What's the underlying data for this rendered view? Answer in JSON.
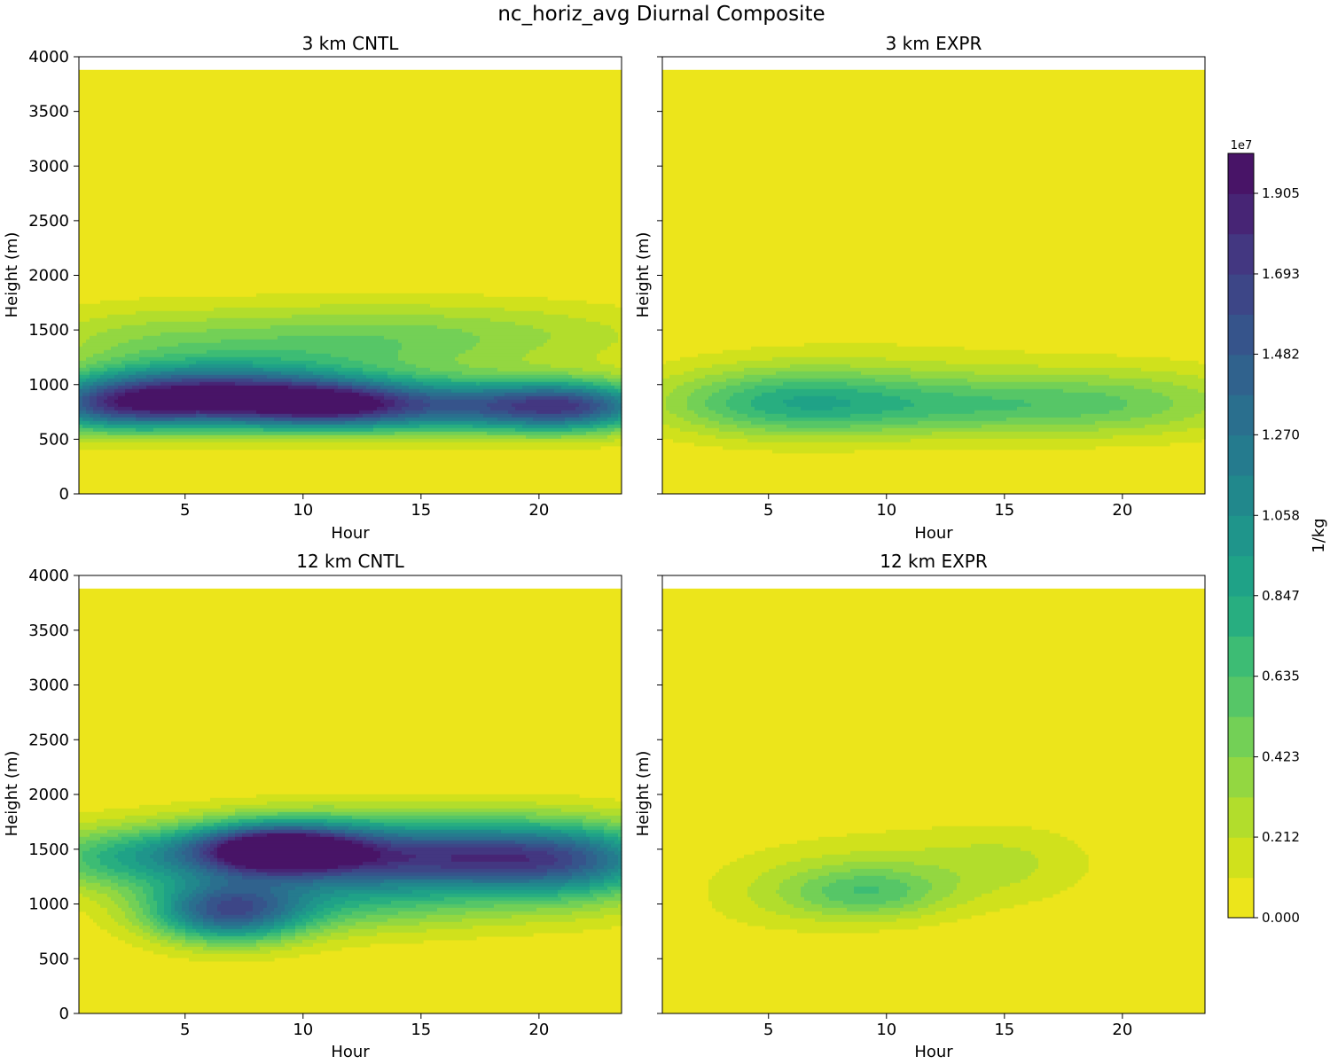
{
  "figure": {
    "title": "nc_horiz_avg Diurnal Composite"
  },
  "colorbar": {
    "label": "1/kg",
    "exponent": "1e7",
    "tick_labels": [
      "0.000",
      "0.212",
      "0.423",
      "0.635",
      "0.847",
      "1.058",
      "1.270",
      "1.482",
      "1.693",
      "1.905"
    ],
    "tick_values": [
      0.0,
      0.212,
      0.423,
      0.635,
      0.847,
      1.058,
      1.27,
      1.482,
      1.693,
      1.905
    ],
    "levels_max": 2.01,
    "level_count": 19,
    "colors": [
      "#ece51b",
      "#d0e11c",
      "#b2dd2c",
      "#93d741",
      "#73d056",
      "#56c667",
      "#3dbc74",
      "#28ae80",
      "#1fa287",
      "#1f958b",
      "#21888c",
      "#257b8e",
      "#2a6f8e",
      "#30628d",
      "#36548b",
      "#3d4687",
      "#433781",
      "#472575",
      "#481467"
    ]
  },
  "chart_data": [
    {
      "type": "heatmap",
      "title": "3 km CNTL",
      "xlabel": "Hour",
      "ylabel": "Height (m)",
      "xlim": [
        0.5,
        23.5
      ],
      "ylim": [
        0,
        4000
      ],
      "data_top": 3880,
      "xticks": [
        5,
        10,
        15,
        20
      ],
      "yticks": [
        0,
        500,
        1000,
        1500,
        2000,
        2500,
        3000,
        3500,
        4000
      ],
      "value_units": "1e7 1/kg",
      "features": [
        {
          "x": 5.8,
          "y": 880,
          "sx": 3.8,
          "sy": 190,
          "amp": 1.72
        },
        {
          "x": 16.5,
          "y": 800,
          "sx": 5.0,
          "sy": 170,
          "amp": 1.25
        },
        {
          "x": 11.0,
          "y": 820,
          "sx": 2.5,
          "sy": 150,
          "amp": 0.9
        },
        {
          "x": 21.5,
          "y": 800,
          "sx": 2.5,
          "sy": 160,
          "amp": 0.95
        },
        {
          "x": 1.5,
          "y": 800,
          "sx": 2.5,
          "sy": 170,
          "amp": 0.85
        },
        {
          "x": 10.0,
          "y": 1300,
          "sx": 5.0,
          "sy": 280,
          "amp": 0.42
        },
        {
          "x": 18.0,
          "y": 1450,
          "sx": 6.0,
          "sy": 230,
          "amp": 0.3
        },
        {
          "x": 2.5,
          "y": 1380,
          "sx": 3.5,
          "sy": 250,
          "amp": 0.25
        }
      ]
    },
    {
      "type": "heatmap",
      "title": "3 km EXPR",
      "xlabel": "Hour",
      "ylabel": "Height (m)",
      "xlim": [
        0.5,
        23.5
      ],
      "ylim": [
        0,
        4000
      ],
      "data_top": 3880,
      "xticks": [
        5,
        10,
        15,
        20
      ],
      "yticks": [
        0,
        500,
        1000,
        1500,
        2000,
        2500,
        3000,
        3500,
        4000
      ],
      "value_units": "1e7 1/kg",
      "features": [
        {
          "x": 5.5,
          "y": 830,
          "sx": 3.8,
          "sy": 220,
          "amp": 0.62
        },
        {
          "x": 13.5,
          "y": 800,
          "sx": 5.5,
          "sy": 200,
          "amp": 0.52
        },
        {
          "x": 21.0,
          "y": 850,
          "sx": 4.0,
          "sy": 240,
          "amp": 0.28
        },
        {
          "x": 10.0,
          "y": 1150,
          "sx": 6.0,
          "sy": 250,
          "amp": 0.12
        }
      ]
    },
    {
      "type": "heatmap",
      "title": "12 km CNTL",
      "xlabel": "Hour",
      "ylabel": "Height (m)",
      "xlim": [
        0.5,
        23.5
      ],
      "ylim": [
        0,
        4000
      ],
      "data_top": 3880,
      "xticks": [
        5,
        10,
        15,
        20
      ],
      "yticks": [
        0,
        500,
        1000,
        1500,
        2000,
        2500,
        3000,
        3500,
        4000
      ],
      "value_units": "1e7 1/kg",
      "features": [
        {
          "x": 8.8,
          "y": 1500,
          "sx": 2.6,
          "sy": 160,
          "amp": 1.85
        },
        {
          "x": 16.0,
          "y": 1430,
          "sx": 5.5,
          "sy": 200,
          "amp": 1.5
        },
        {
          "x": 6.8,
          "y": 930,
          "sx": 2.3,
          "sy": 200,
          "amp": 1.3
        },
        {
          "x": 12.0,
          "y": 1050,
          "sx": 5.0,
          "sy": 220,
          "amp": 0.6
        },
        {
          "x": 2.5,
          "y": 1420,
          "sx": 3.0,
          "sy": 200,
          "amp": 0.7
        },
        {
          "x": 21.5,
          "y": 1350,
          "sx": 3.0,
          "sy": 280,
          "amp": 0.65
        },
        {
          "x": 13.0,
          "y": 1750,
          "sx": 6.0,
          "sy": 180,
          "amp": 0.25
        }
      ]
    },
    {
      "type": "heatmap",
      "title": "12 km EXPR",
      "xlabel": "Hour",
      "ylabel": "Height (m)",
      "xlim": [
        0.5,
        23.5
      ],
      "ylim": [
        0,
        4000
      ],
      "data_top": 3880,
      "xticks": [
        5,
        10,
        15,
        20
      ],
      "yticks": [
        0,
        500,
        1000,
        1500,
        2000,
        2500,
        3000,
        3500,
        4000
      ],
      "value_units": "1e7 1/kg",
      "features": [
        {
          "x": 9.2,
          "y": 1100,
          "sx": 2.3,
          "sy": 170,
          "amp": 0.46
        },
        {
          "x": 10.5,
          "y": 1300,
          "sx": 4.5,
          "sy": 300,
          "amp": 0.2
        },
        {
          "x": 15.5,
          "y": 1400,
          "sx": 2.5,
          "sy": 250,
          "amp": 0.14
        },
        {
          "x": 5.0,
          "y": 1050,
          "sx": 2.5,
          "sy": 260,
          "amp": 0.12
        }
      ]
    }
  ]
}
